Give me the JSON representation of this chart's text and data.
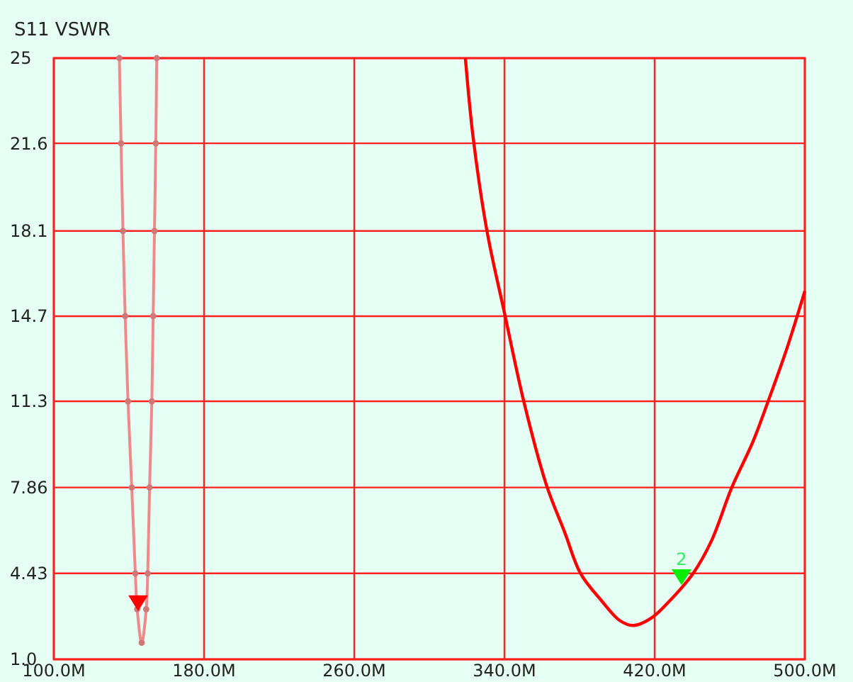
{
  "chart_data": {
    "type": "line",
    "title": "S11 VSWR",
    "xlim": [
      100,
      500
    ],
    "xticks": [
      {
        "value": 100,
        "label": "100.0M"
      },
      {
        "value": 180,
        "label": "180.0M"
      },
      {
        "value": 260,
        "label": "260.0M"
      },
      {
        "value": 340,
        "label": "340.0M"
      },
      {
        "value": 420,
        "label": "420.0M"
      },
      {
        "value": 500,
        "label": "500.0M"
      }
    ],
    "ylim": [
      1,
      25
    ],
    "yticks": [
      {
        "value": 1,
        "label": "1.0"
      },
      4.43,
      7.86,
      11.3,
      14.7,
      18.1,
      21.6,
      25
    ],
    "grid": true,
    "line_style": "solid",
    "series": [
      {
        "color": "#f08a8a",
        "marker": "circle",
        "x": [
          134.9,
          135.8,
          136.8,
          138.0,
          139.5,
          141.5,
          143.4,
          144.4,
          146.8,
          149.2,
          150.0,
          151.0,
          152.2,
          152.9,
          153.6,
          154.3,
          154.8
        ],
        "values": [
          25,
          21.6,
          18.1,
          14.7,
          11.3,
          7.86,
          4.43,
          3.0,
          1.66,
          3.0,
          4.43,
          7.86,
          11.3,
          14.7,
          18.1,
          21.6,
          25
        ]
      },
      {
        "color": "#ff0000",
        "marker": "none",
        "x": [
          319.2,
          323.3,
          330.7,
          340.4,
          350.2,
          362.4,
          372.1,
          380.6,
          391.6,
          401.4,
          408.7,
          418.5,
          428.2,
          440.4,
          450.1,
          461.1,
          472.1,
          480.6,
          490.4,
          500
        ],
        "values": [
          25,
          21.85,
          18.1,
          14.7,
          11.33,
          7.95,
          6.07,
          4.42,
          3.35,
          2.55,
          2.35,
          2.66,
          3.35,
          4.42,
          5.7,
          7.86,
          9.64,
          11.33,
          13.4,
          15.7
        ]
      },
      {
        "type": "scatter",
        "color": "#ff0000",
        "marker": "triangle",
        "x": [
          144.9
        ],
        "values": [
          3.16
        ]
      },
      {
        "type": "scatter",
        "color": "#00ee00",
        "marker": "triangle",
        "x": [
          434.3
        ],
        "values": [
          4.2
        ]
      }
    ],
    "annotations": [
      {
        "text": "2",
        "x": 434.3,
        "y": 4.2
      }
    ]
  }
}
